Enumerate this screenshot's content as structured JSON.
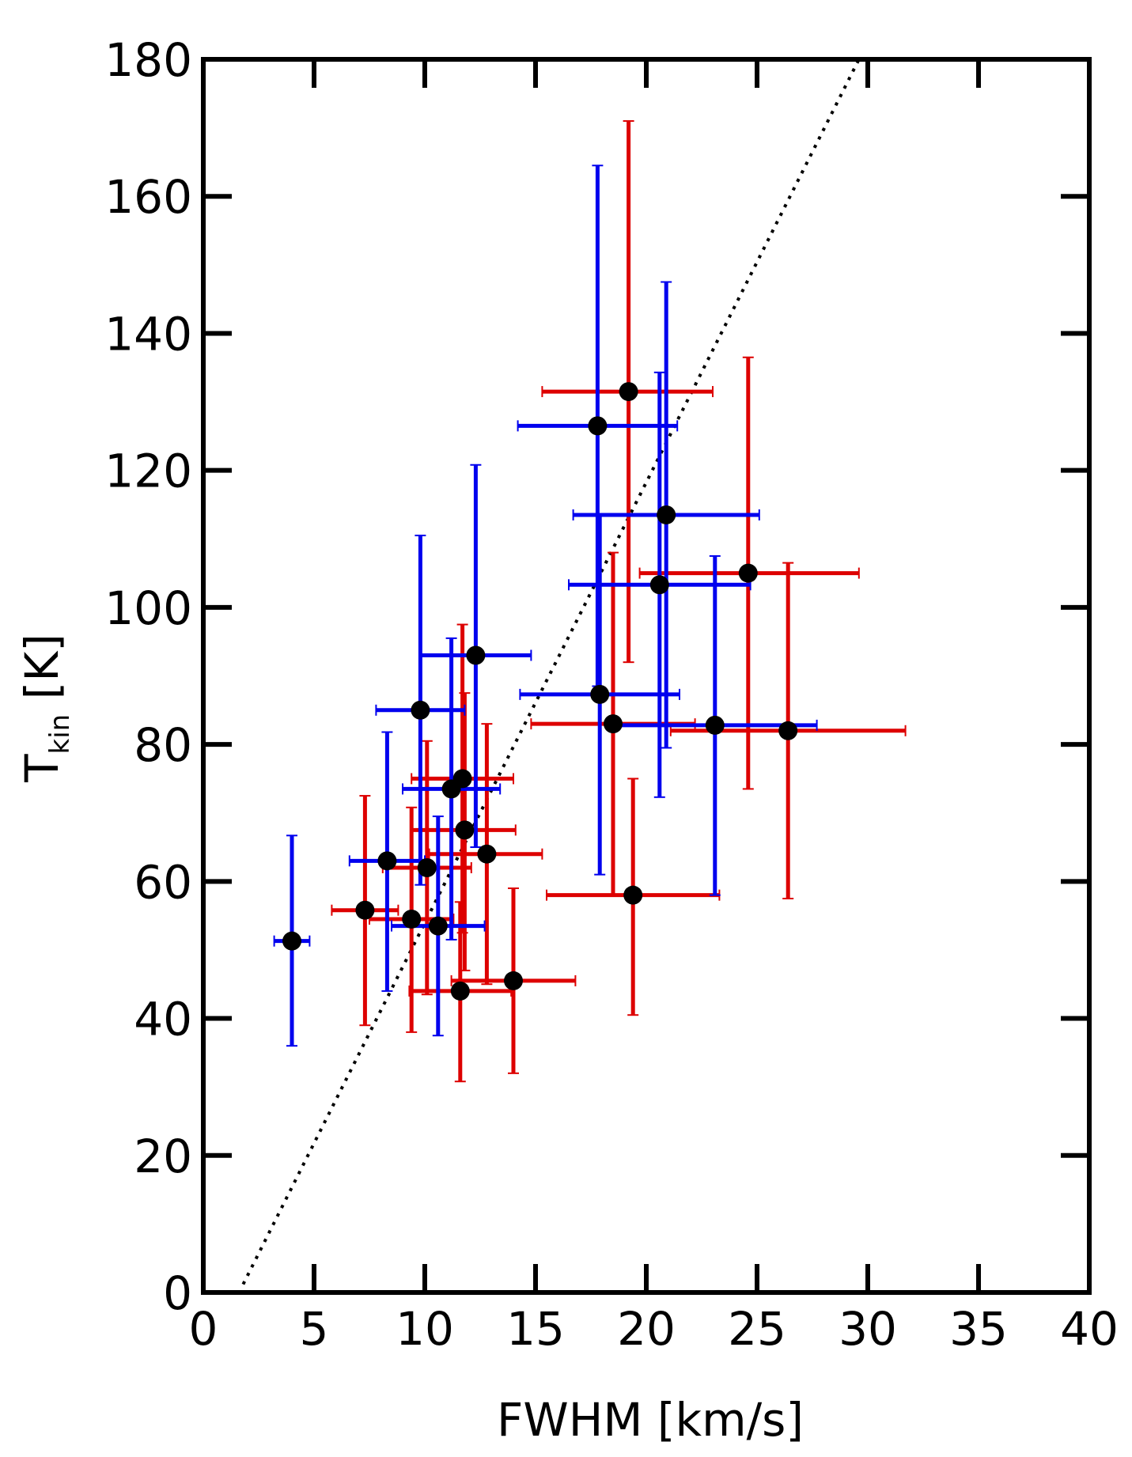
{
  "chart_data": {
    "type": "scatter",
    "title": "",
    "xlabel": "FWHM  [km/s]",
    "ylabel": {
      "main": "T",
      "sub": "kin",
      "unit": "  [K]"
    },
    "xlim": [
      0,
      40
    ],
    "ylim": [
      0,
      180
    ],
    "x_ticks": [
      0,
      5,
      10,
      15,
      20,
      25,
      30,
      35,
      40
    ],
    "y_ticks": [
      0,
      20,
      40,
      60,
      80,
      100,
      120,
      140,
      160,
      180
    ],
    "grid": false,
    "legend": "none",
    "colors": {
      "red": "#dd0000",
      "blue": "#0000ee",
      "marker": "#000000",
      "axis": "#000000"
    },
    "reference_line": {
      "style": "dotted",
      "x": [
        1.8,
        29.6
      ],
      "y": [
        1.2,
        180
      ]
    },
    "series": [
      {
        "color": "#dd0000",
        "points": [
          {
            "x": 19.2,
            "y": 131.5,
            "xerr": [
              15.3,
              23.0
            ],
            "yerr": [
              92.0,
              171.0
            ]
          },
          {
            "x": 24.6,
            "y": 105.0,
            "xerr": [
              19.7,
              29.6
            ],
            "yerr": [
              73.5,
              136.5
            ]
          },
          {
            "x": 26.4,
            "y": 82.0,
            "xerr": [
              21.1,
              31.7
            ],
            "yerr": [
              57.5,
              106.5
            ]
          },
          {
            "x": 18.5,
            "y": 83.0,
            "xerr": [
              14.8,
              22.2
            ],
            "yerr": [
              58.0,
              108.0
            ]
          },
          {
            "x": 19.4,
            "y": 58.0,
            "xerr": [
              15.5,
              23.3
            ],
            "yerr": [
              40.5,
              75.0
            ]
          },
          {
            "x": 11.7,
            "y": 75.0,
            "xerr": [
              9.4,
              14.0
            ],
            "yerr": [
              52.5,
              97.5
            ]
          },
          {
            "x": 11.8,
            "y": 67.5,
            "xerr": [
              9.4,
              14.1
            ],
            "yerr": [
              47.0,
              87.5
            ]
          },
          {
            "x": 12.8,
            "y": 64.0,
            "xerr": [
              10.2,
              15.3
            ],
            "yerr": [
              45.0,
              83.0
            ]
          },
          {
            "x": 10.1,
            "y": 62.0,
            "xerr": [
              8.1,
              12.1
            ],
            "yerr": [
              43.5,
              80.5
            ]
          },
          {
            "x": 7.3,
            "y": 55.8,
            "xerr": [
              5.8,
              8.8
            ],
            "yerr": [
              39.0,
              72.5
            ]
          },
          {
            "x": 9.4,
            "y": 54.5,
            "xerr": [
              7.5,
              11.3
            ],
            "yerr": [
              38.0,
              70.8
            ]
          },
          {
            "x": 14.0,
            "y": 45.5,
            "xerr": [
              11.2,
              16.8
            ],
            "yerr": [
              32.0,
              59.0
            ]
          },
          {
            "x": 11.6,
            "y": 44.0,
            "xerr": [
              9.3,
              13.9
            ],
            "yerr": [
              30.8,
              57.0
            ]
          }
        ]
      },
      {
        "color": "#0000ee",
        "points": [
          {
            "x": 17.8,
            "y": 126.5,
            "xerr": [
              14.2,
              21.4
            ],
            "yerr": [
              88.5,
              164.5
            ]
          },
          {
            "x": 20.9,
            "y": 113.5,
            "xerr": [
              16.7,
              25.1
            ],
            "yerr": [
              79.5,
              147.5
            ]
          },
          {
            "x": 20.6,
            "y": 103.3,
            "xerr": [
              16.5,
              24.7
            ],
            "yerr": [
              72.3,
              134.3
            ]
          },
          {
            "x": 17.9,
            "y": 87.3,
            "xerr": [
              14.3,
              21.5
            ],
            "yerr": [
              61.0,
              113.5
            ]
          },
          {
            "x": 23.1,
            "y": 82.8,
            "xerr": [
              18.5,
              27.7
            ],
            "yerr": [
              58.0,
              107.5
            ]
          },
          {
            "x": 12.3,
            "y": 93.0,
            "xerr": [
              9.8,
              14.8
            ],
            "yerr": [
              65.0,
              120.8
            ]
          },
          {
            "x": 9.8,
            "y": 85.0,
            "xerr": [
              7.8,
              11.8
            ],
            "yerr": [
              59.5,
              110.5
            ]
          },
          {
            "x": 11.2,
            "y": 73.5,
            "xerr": [
              9.0,
              13.4
            ],
            "yerr": [
              51.5,
              95.5
            ]
          },
          {
            "x": 8.3,
            "y": 63.0,
            "xerr": [
              6.6,
              10.0
            ],
            "yerr": [
              44.0,
              81.8
            ]
          },
          {
            "x": 10.6,
            "y": 53.5,
            "xerr": [
              8.5,
              12.7
            ],
            "yerr": [
              37.5,
              69.5
            ]
          },
          {
            "x": 4.0,
            "y": 51.3,
            "xerr": [
              3.2,
              4.8
            ],
            "yerr": [
              36.0,
              66.7
            ]
          }
        ]
      }
    ]
  }
}
